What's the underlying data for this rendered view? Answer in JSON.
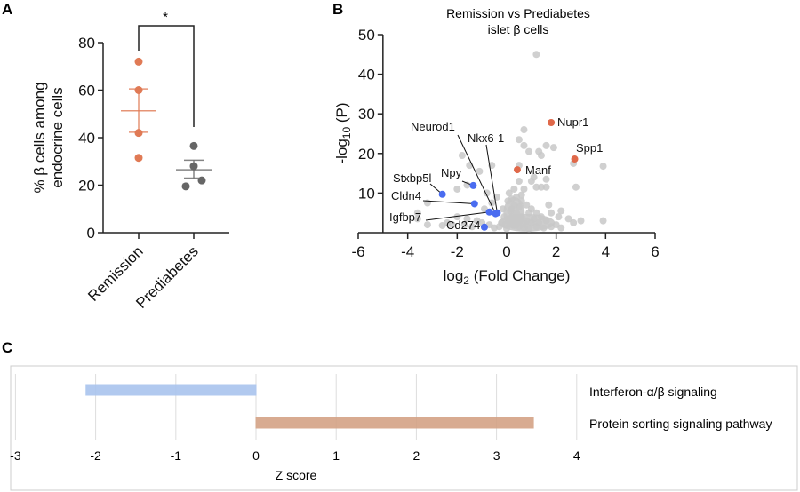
{
  "chart_data": [
    {
      "panel": "A",
      "type": "scatter",
      "ylabel_line1": "% β cells among",
      "ylabel_line2": "endocrine cells",
      "categories": [
        "Remission",
        "Prediabetes"
      ],
      "ylim": [
        0,
        80
      ],
      "yticks": [
        "0",
        "20",
        "40",
        "60",
        "80"
      ],
      "series": [
        {
          "category": "Remission",
          "values": [
            72,
            60,
            42,
            31.5
          ],
          "mean": 51.3,
          "sem_low": 42.3,
          "sem_high": 60.5,
          "color": "#e07a55"
        },
        {
          "category": "Prediabetes",
          "values": [
            36.5,
            28,
            22,
            19.5
          ],
          "mean": 26.5,
          "sem_low": 23,
          "sem_high": 30.5,
          "color": "#666666"
        }
      ],
      "significance": "*"
    },
    {
      "panel": "B",
      "type": "scatter",
      "title_line1": "Remission vs Prediabetes",
      "title_line2": "islet β cells",
      "xlabel": "log2 (Fold Change)",
      "ylabel": "-log10 (P)",
      "xlim": [
        -6,
        6
      ],
      "ylim": [
        0,
        50
      ],
      "xticks": [
        "-6",
        "-4",
        "-2",
        "0",
        "2",
        "4",
        "6"
      ],
      "yticks": [
        "10",
        "20",
        "30",
        "40",
        "50"
      ],
      "colors": {
        "background_genes": "#c8c8c8",
        "up": "#e0694a",
        "down": "#4a6cf0"
      },
      "background_points": [
        [
          1.2,
          45
        ],
        [
          0.7,
          26
        ],
        [
          0.5,
          23.5
        ],
        [
          0.7,
          22
        ],
        [
          1.6,
          22
        ],
        [
          1.9,
          21.5
        ],
        [
          1.3,
          20.5
        ],
        [
          1.4,
          19.5
        ],
        [
          0.9,
          20.5
        ],
        [
          2.7,
          17.5
        ],
        [
          3.9,
          16.8
        ],
        [
          2.8,
          11.5
        ],
        [
          3.9,
          3
        ],
        [
          0.5,
          17
        ],
        [
          1.1,
          14
        ],
        [
          1.0,
          13
        ],
        [
          1.2,
          11.5
        ],
        [
          0.5,
          13
        ],
        [
          0.7,
          11
        ],
        [
          1.6,
          13.5
        ],
        [
          1.6,
          11.5
        ],
        [
          1.4,
          11.5
        ],
        [
          -1.8,
          19.5
        ],
        [
          -1.5,
          17
        ],
        [
          -1.1,
          15.5
        ],
        [
          -0.6,
          17
        ],
        [
          -2.0,
          11
        ],
        [
          -1.6,
          12
        ],
        [
          -3.2,
          7.5
        ],
        [
          -3.6,
          5
        ],
        [
          -3.6,
          3.5
        ],
        [
          -3.2,
          2
        ],
        [
          -2.2,
          2
        ],
        [
          -1.7,
          2
        ],
        [
          -0.8,
          10
        ],
        [
          -0.4,
          9
        ],
        [
          -0.6,
          7.5
        ],
        [
          -0.9,
          6
        ],
        [
          2.2,
          5.5
        ],
        [
          2.5,
          3.5
        ],
        [
          3.0,
          3
        ],
        [
          2.7,
          2.5
        ],
        [
          1.8,
          5
        ],
        [
          0.1,
          10
        ],
        [
          0.2,
          8.5
        ],
        [
          0.3,
          11
        ],
        [
          0.4,
          9
        ],
        [
          0.6,
          8
        ],
        [
          0.8,
          7
        ],
        [
          1.0,
          6
        ],
        [
          1.2,
          5
        ],
        [
          1.4,
          4
        ],
        [
          1.6,
          3
        ],
        [
          0.2,
          6
        ],
        [
          0.4,
          5
        ],
        [
          0.6,
          4
        ],
        [
          0.8,
          3
        ],
        [
          1.0,
          2.5
        ],
        [
          0.1,
          3
        ],
        [
          0.3,
          2
        ],
        [
          0.5,
          1.5
        ],
        [
          0.7,
          1.2
        ],
        [
          0.9,
          1
        ],
        [
          1.2,
          1.5
        ],
        [
          1.5,
          1.2
        ],
        [
          1.8,
          1.5
        ],
        [
          2.0,
          2
        ],
        [
          2.2,
          1.2
        ],
        [
          -0.1,
          4
        ],
        [
          -0.2,
          2.5
        ],
        [
          -0.3,
          1.5
        ],
        [
          -0.5,
          1.2
        ],
        [
          -0.7,
          2
        ],
        [
          -1.0,
          2.5
        ],
        [
          -1.2,
          3
        ],
        [
          -1.4,
          1.5
        ],
        [
          -1.6,
          3.5
        ],
        [
          -2.0,
          4
        ],
        [
          -2.4,
          2.5
        ],
        [
          -2.6,
          1.8
        ],
        [
          0.0,
          1
        ],
        [
          0.2,
          4
        ],
        [
          0.5,
          6.5
        ],
        [
          0.9,
          5
        ],
        [
          1.1,
          3.5
        ],
        [
          1.3,
          2.5
        ],
        [
          0.3,
          7
        ],
        [
          0.6,
          9.5
        ],
        [
          0.15,
          5.5
        ],
        [
          -0.15,
          6
        ],
        [
          0.05,
          8
        ],
        [
          1.7,
          7
        ],
        [
          2.1,
          4
        ],
        [
          -0.05,
          2
        ],
        [
          0.35,
          3.5
        ],
        [
          0.75,
          2.2
        ]
      ],
      "labeled_genes": [
        {
          "gene": "Nupr1",
          "x": 1.8,
          "y": 27.8,
          "direction": "up"
        },
        {
          "gene": "Spp1",
          "x": 2.75,
          "y": 18.6,
          "direction": "up"
        },
        {
          "gene": "Manf",
          "x": 0.43,
          "y": 15.9,
          "direction": "up"
        },
        {
          "gene": "Neurod1",
          "x": -0.45,
          "y": 4.8,
          "direction": "down"
        },
        {
          "gene": "Nkx6-1",
          "x": -0.38,
          "y": 5.0,
          "direction": "down"
        },
        {
          "gene": "Npy",
          "x": -1.35,
          "y": 11.9,
          "direction": "down"
        },
        {
          "gene": "Stxbp5l",
          "x": -2.6,
          "y": 9.7,
          "direction": "down"
        },
        {
          "gene": "Cldn4",
          "x": -1.3,
          "y": 7.3,
          "direction": "down"
        },
        {
          "gene": "Igfbp7",
          "x": -0.7,
          "y": 5.2,
          "direction": "down"
        },
        {
          "gene": "Cd274",
          "x": -0.9,
          "y": 1.4,
          "direction": "down"
        }
      ]
    },
    {
      "panel": "C",
      "type": "bar",
      "orientation": "horizontal",
      "xlabel": "Z score",
      "xlim": [
        -3,
        4
      ],
      "xticks": [
        "-3",
        "-2",
        "-1",
        "0",
        "1",
        "2",
        "3",
        "4"
      ],
      "grid": true,
      "categories": [
        "Interferon-α/β signaling",
        "Protein sorting signaling pathway"
      ],
      "values": [
        -2.12,
        3.46
      ],
      "colors": [
        "#a9c4ee",
        "#d4a386"
      ]
    }
  ],
  "panel_labels": [
    "A",
    "B",
    "C"
  ]
}
